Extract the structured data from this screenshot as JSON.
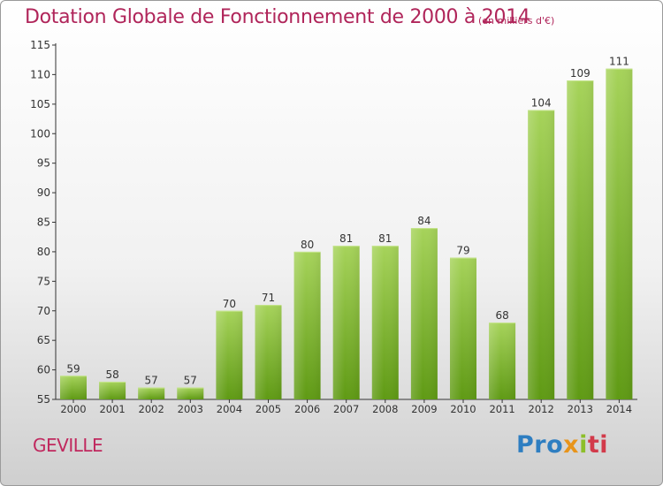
{
  "title": "Dotation Globale de Fonctionnement de 2000 à 2014",
  "unit_note": "(en milliers d'€)",
  "place_name": "GEVILLE",
  "brand": {
    "part1": "Pro",
    "part2": "x",
    "part3": "i",
    "part4": "ti"
  },
  "colors": {
    "title": "#b0255a",
    "bar_top": "#a6d35a",
    "bar_bottom": "#5f9a14",
    "axis": "#333333"
  },
  "chart_data": {
    "type": "bar",
    "title": "Dotation Globale de Fonctionnement de 2000 à 2014",
    "subtitle": "(en milliers d'€)",
    "categories": [
      "2000",
      "2001",
      "2002",
      "2003",
      "2004",
      "2005",
      "2006",
      "2007",
      "2008",
      "2009",
      "2010",
      "2011",
      "2012",
      "2013",
      "2014"
    ],
    "values": [
      59,
      58,
      57,
      57,
      70,
      71,
      80,
      81,
      81,
      84,
      79,
      68,
      104,
      109,
      111
    ],
    "ylim": [
      55,
      115
    ],
    "yticks": [
      55,
      60,
      65,
      70,
      75,
      80,
      85,
      90,
      95,
      100,
      105,
      110,
      115
    ],
    "grid": false
  }
}
